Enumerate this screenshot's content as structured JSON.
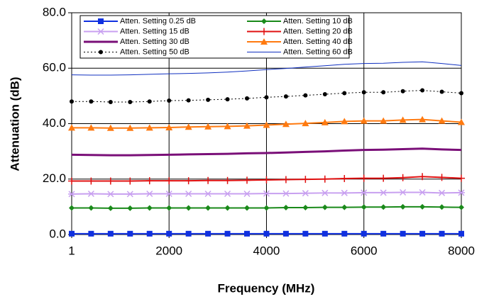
{
  "chart_data": {
    "type": "line",
    "x_label": "Frequency (MHz)",
    "y_label": "Attenuation (dB)",
    "x": [
      1,
      400,
      800,
      1200,
      1600,
      2000,
      2400,
      2800,
      3200,
      3600,
      4000,
      4400,
      4800,
      5200,
      5600,
      6000,
      6400,
      6800,
      7200,
      7600,
      8000
    ],
    "xlim": [
      1,
      8000
    ],
    "xticks": [
      1,
      2000,
      4000,
      6000,
      8000
    ],
    "ylim": [
      0,
      80
    ],
    "yticks": [
      {
        "value": 0,
        "label": "0.0"
      },
      {
        "value": 20,
        "label": "20.0"
      },
      {
        "value": 40,
        "label": "40.0"
      },
      {
        "value": 60,
        "label": "60.0"
      },
      {
        "value": 80,
        "label": "80.0"
      }
    ],
    "grid": true,
    "legend": "upper left",
    "series": [
      {
        "name": "Atten. Setting 0.25 dB",
        "color": "#1030e0",
        "marker": "square",
        "line_style": "solid",
        "line_width": 2,
        "values": [
          0.3,
          0.3,
          0.3,
          0.3,
          0.3,
          0.3,
          0.3,
          0.3,
          0.3,
          0.3,
          0.3,
          0.3,
          0.3,
          0.3,
          0.3,
          0.3,
          0.3,
          0.3,
          0.3,
          0.3,
          0.3
        ]
      },
      {
        "name": "Atten. Setting 10 dB",
        "color": "#1a8a1a",
        "marker": "diamond",
        "line_style": "solid",
        "line_width": 2,
        "values": [
          9.6,
          9.6,
          9.5,
          9.5,
          9.6,
          9.6,
          9.6,
          9.6,
          9.6,
          9.6,
          9.6,
          9.7,
          9.7,
          9.8,
          9.8,
          9.9,
          9.9,
          10.0,
          10.0,
          9.9,
          9.8
        ]
      },
      {
        "name": "Atten. Setting 15 dB",
        "color": "#c8a0f0",
        "marker": "star",
        "line_style": "solid",
        "line_width": 2,
        "values": [
          14.6,
          14.7,
          14.6,
          14.6,
          14.7,
          14.7,
          14.7,
          14.7,
          14.7,
          14.7,
          14.8,
          14.8,
          14.9,
          15.0,
          15.0,
          15.1,
          15.1,
          15.2,
          15.2,
          15.0,
          15.1
        ]
      },
      {
        "name": "Atten. Setting 20 dB",
        "color": "#e01010",
        "marker": "plus",
        "line_style": "solid",
        "line_width": 2,
        "values": [
          19.3,
          19.3,
          19.3,
          19.3,
          19.4,
          19.4,
          19.4,
          19.5,
          19.5,
          19.6,
          19.7,
          19.8,
          19.9,
          20.0,
          20.2,
          20.3,
          20.3,
          20.5,
          20.9,
          20.6,
          20.3
        ]
      },
      {
        "name": "Atten. Setting 30 dB",
        "color": "#7a0f78",
        "marker": "none",
        "line_style": "solid",
        "line_width": 3,
        "values": [
          28.8,
          28.7,
          28.6,
          28.6,
          28.7,
          28.8,
          28.9,
          29.0,
          29.1,
          29.3,
          29.4,
          29.6,
          29.8,
          30.0,
          30.3,
          30.5,
          30.6,
          30.8,
          31.0,
          30.7,
          30.5
        ]
      },
      {
        "name": "Atten. Setting 40 dB",
        "color": "#ff7a10",
        "marker": "triangle",
        "line_style": "solid",
        "line_width": 2,
        "values": [
          38.5,
          38.5,
          38.4,
          38.4,
          38.5,
          38.6,
          38.8,
          38.9,
          39.0,
          39.2,
          39.5,
          39.8,
          40.1,
          40.4,
          40.8,
          41.0,
          41.0,
          41.3,
          41.5,
          41.0,
          40.5
        ]
      },
      {
        "name": "Atten. Setting 50 dB",
        "color": "#000000",
        "marker": "circle",
        "line_style": "dotted",
        "line_width": 1,
        "values": [
          48.0,
          48.0,
          47.8,
          47.8,
          48.0,
          48.3,
          48.4,
          48.6,
          48.8,
          49.1,
          49.5,
          49.8,
          50.2,
          50.6,
          51.0,
          51.3,
          51.3,
          51.7,
          52.0,
          51.5,
          51.0
        ]
      },
      {
        "name": "Atten. Setting 60 dB",
        "color": "#1030c0",
        "marker": "none",
        "line_style": "solid",
        "line_width": 1,
        "values": [
          57.6,
          57.5,
          57.5,
          57.6,
          57.8,
          58.0,
          58.1,
          58.3,
          58.6,
          59.0,
          59.5,
          59.9,
          60.4,
          60.9,
          61.4,
          61.7,
          61.8,
          62.1,
          62.3,
          61.7,
          61.0
        ]
      }
    ]
  }
}
